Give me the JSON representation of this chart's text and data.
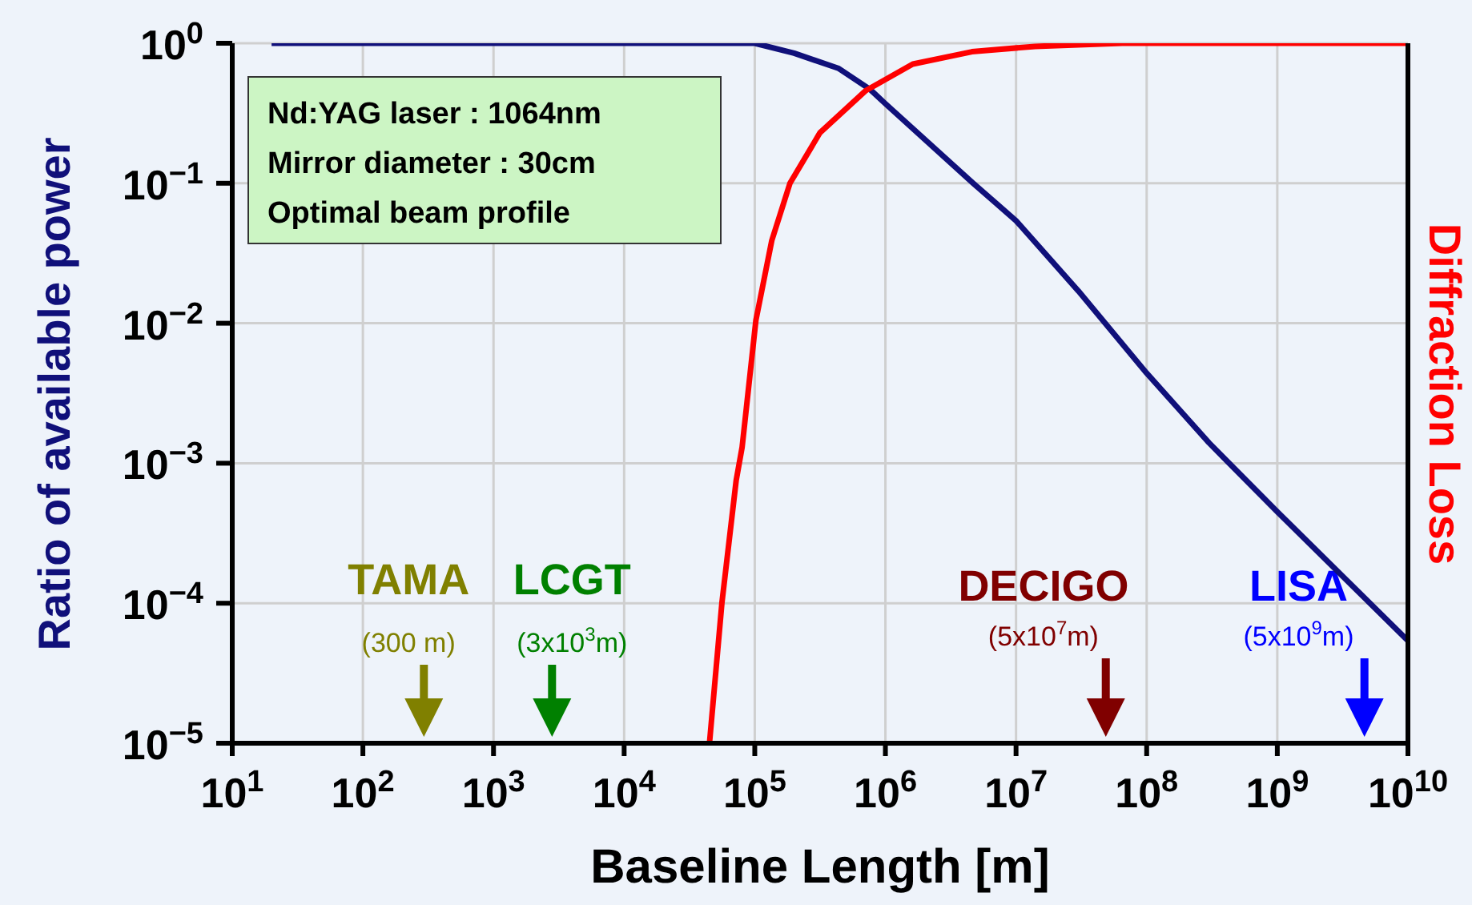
{
  "chart_data": {
    "type": "line",
    "xlabel": "Baseline Length   [m]",
    "ylabel": "Ratio of available power",
    "y2label": "Diffraction Loss",
    "xlim": [
      10,
      10000000000
    ],
    "ylim": [
      1e-05,
      1
    ],
    "log": "xy",
    "grid": true,
    "marker": "none",
    "line_style": "solid",
    "xticks": [
      {
        "value": 10,
        "label": "10$^{1}$"
      },
      {
        "value": 100,
        "label": "10$^{2}$"
      },
      {
        "value": 1000,
        "label": "10$^{3}$"
      },
      {
        "value": 10000,
        "label": "10$^{4}$"
      },
      {
        "value": 100000,
        "label": "10$^{5}$"
      },
      {
        "value": 1000000,
        "label": "10$^{6}$"
      },
      {
        "value": 10000000,
        "label": "10$^{7}$"
      },
      {
        "value": 100000000,
        "label": "10$^{8}$"
      },
      {
        "value": 1000000000,
        "label": "10$^{9}$"
      },
      {
        "value": 10000000000,
        "label": "10$^{10}$"
      }
    ],
    "yticks": [
      {
        "value": 1e-05,
        "label": "10$^{−5}$"
      },
      {
        "value": 0.0001,
        "label": "10$^{−4}$"
      },
      {
        "value": 0.001,
        "label": "10$^{−3}$"
      },
      {
        "value": 0.01,
        "label": "10$^{−2}$"
      },
      {
        "value": 0.1,
        "label": "10$^{−1}$"
      },
      {
        "value": 1,
        "label": "10$^{0}$"
      }
    ],
    "series": [
      {
        "color": "#10107a",
        "x": [
          20,
          10000,
          100000,
          200000,
          440000,
          760000,
          1000000,
          4700000,
          10000000,
          30000000,
          100000000,
          300000000,
          1000000000,
          10000000000
        ],
        "values": [
          1,
          1,
          1,
          0.85,
          0.66,
          0.47,
          0.37,
          0.1,
          0.054,
          0.017,
          0.0044,
          0.0014,
          0.00045,
          5.4e-05
        ]
      },
      {
        "color": "#ff0000",
        "x": [
          45000,
          56000,
          72000,
          80000,
          102000,
          135000,
          186000,
          316000,
          710000,
          1620000,
          4600000,
          14000000,
          65000000,
          10000000000
        ],
        "values": [
          1e-05,
          0.0001,
          0.00075,
          0.0013,
          0.0105,
          0.039,
          0.1,
          0.23,
          0.46,
          0.71,
          0.87,
          0.95,
          1,
          1
        ]
      }
    ],
    "annotations": [
      "Nd:YAG laser : 1064nm",
      "Mirror diameter : 30cm",
      "Optimal beam profile",
      "TAMA",
      "(300 m)",
      "LCGT",
      "(3x10$^{3}$m)",
      "DECIGO",
      "(5x10$^{7}$m)",
      "LISA",
      "(5x10$^{9}$m)"
    ]
  }
}
